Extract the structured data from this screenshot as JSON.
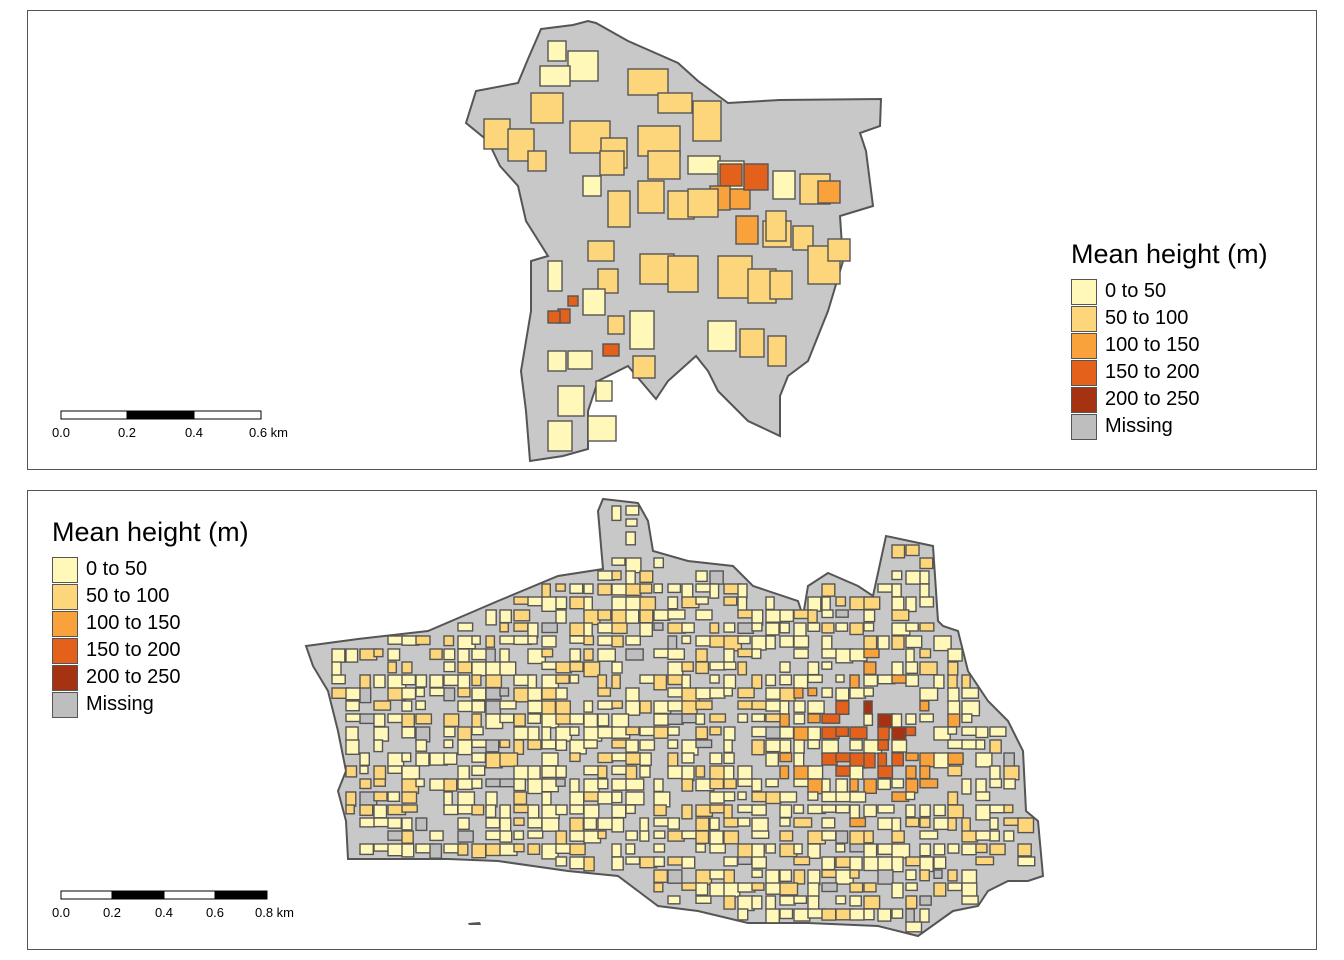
{
  "palette": {
    "bin0": "#FFF8B8",
    "bin1": "#FDD57A",
    "bin2": "#F9A23C",
    "bin3": "#E4611C",
    "bin4": "#A53210",
    "missing": "#BEBEBE",
    "outline": "#555555",
    "land": "#C8C8C8"
  },
  "maps": [
    {
      "name": "top-map",
      "legend": {
        "title": "Mean height (m)",
        "items": [
          {
            "label": "0 to 50",
            "color": "#FFF8B8"
          },
          {
            "label": "50 to 100",
            "color": "#FDD57A"
          },
          {
            "label": "100 to 150",
            "color": "#F9A23C"
          },
          {
            "label": "150 to 200",
            "color": "#E4611C"
          },
          {
            "label": "200 to 250",
            "color": "#A53210"
          },
          {
            "label": "Missing",
            "color": "#BEBEBE"
          }
        ]
      },
      "scalebar": {
        "ticks": [
          "0.0",
          "0.2",
          "0.4",
          "0.6 km"
        ]
      }
    },
    {
      "name": "bottom-map",
      "legend": {
        "title": "Mean height (m)",
        "items": [
          {
            "label": "0 to 50",
            "color": "#FFF8B8"
          },
          {
            "label": "50 to 100",
            "color": "#FDD57A"
          },
          {
            "label": "100 to 150",
            "color": "#F9A23C"
          },
          {
            "label": "150 to 200",
            "color": "#E4611C"
          },
          {
            "label": "200 to 250",
            "color": "#A53210"
          },
          {
            "label": "Missing",
            "color": "#BEBEBE"
          }
        ]
      },
      "scalebar": {
        "ticks": [
          "0.0",
          "0.2",
          "0.4",
          "0.6",
          "0.8 km"
        ]
      }
    }
  ]
}
